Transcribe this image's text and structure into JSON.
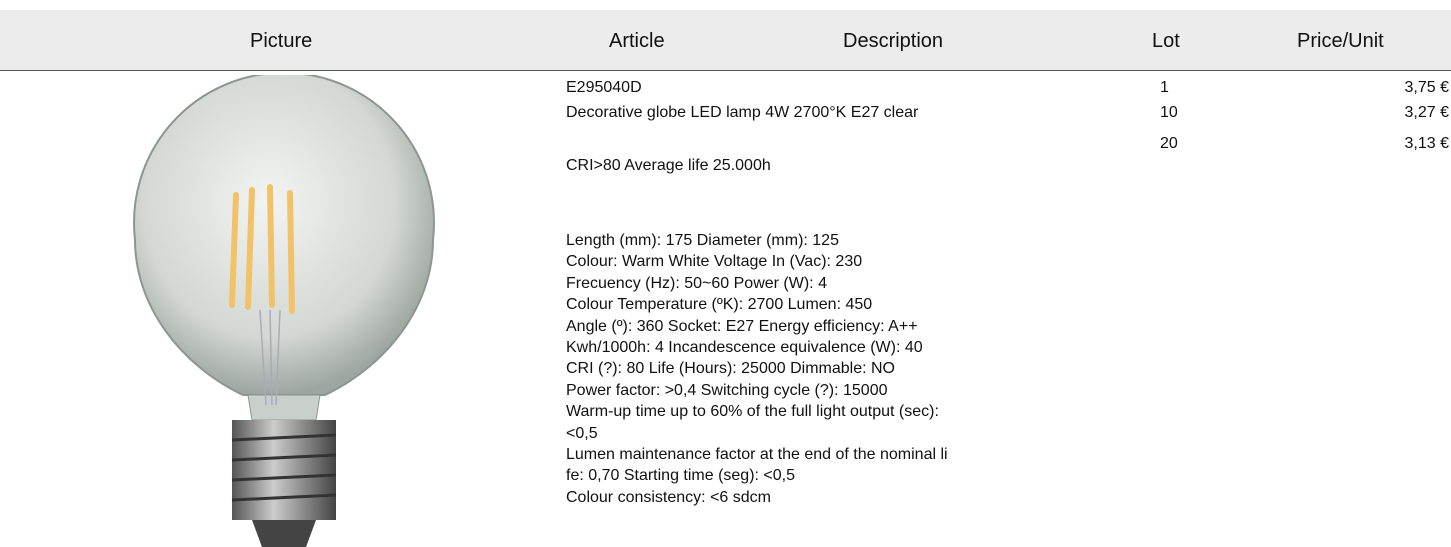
{
  "header": {
    "picture": "Picture",
    "article": "Article",
    "description": "Description",
    "lot": "Lot",
    "price": "Price/Unit"
  },
  "product": {
    "code": "E295040D",
    "name": "Decorative globe LED lamp 4W 2700°K E27 clear",
    "summary": "CRI>80 Average life 25.000h",
    "details": [
      "Length (mm): 175 Diameter (mm): 125",
      "Colour: Warm White Voltage In (Vac): 230",
      "Frecuency (Hz): 50~60 Power (W): 4",
      "Colour Temperature (ºK): 2700 Lumen: 450",
      "Angle (º): 360 Socket: E27 Energy efficiency: A++",
      "Kwh/1000h: 4 Incandescence equivalence (W): 40",
      "CRI (?): 80 Life (Hours): 25000 Dimmable: NO",
      "Power factor: >0,4 Switching cycle (?): 15000",
      "Warm-up time up to 60% of the full light output (sec):",
      "<0,5",
      "Lumen maintenance factor at the end of the nominal li",
      "fe: 0,70 Starting time (seg): <0,5",
      "Colour consistency: <6 sdcm"
    ]
  },
  "prices": [
    {
      "lot": "1",
      "price": "3,75 €"
    },
    {
      "lot": "10",
      "price": "3,27 €"
    },
    {
      "lot": "20",
      "price": "3,13 €"
    }
  ]
}
